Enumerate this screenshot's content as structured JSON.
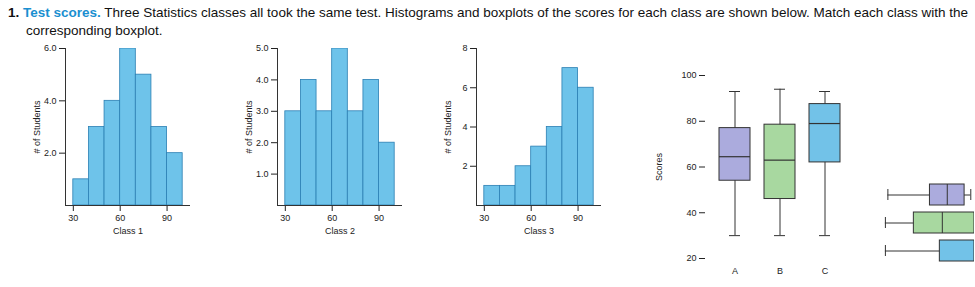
{
  "header": {
    "number": "1.",
    "title": "Test scores.",
    "text": "Three Statistics classes all took the same test. Histograms and boxplots of the scores for each class are shown below. Match each class with the corresponding boxplot."
  },
  "chart_data": [
    {
      "type": "histogram",
      "x_label": "Class 1",
      "y_label": "# of Students",
      "bins": [
        30,
        40,
        50,
        60,
        70,
        80,
        90,
        100
      ],
      "counts": [
        1,
        3,
        4,
        6,
        5,
        3,
        2
      ],
      "color": "#6ec3ea",
      "xlim": [
        25,
        105
      ],
      "xticks": [
        30,
        60,
        90
      ],
      "ylim": [
        0,
        6
      ],
      "yticks": [
        2,
        4,
        6
      ]
    },
    {
      "type": "histogram",
      "x_label": "Class 2",
      "y_label": "# of Students",
      "bins": [
        30,
        40,
        50,
        60,
        70,
        80,
        90,
        100
      ],
      "counts": [
        3,
        4,
        3,
        5,
        3,
        4,
        2
      ],
      "color": "#6ec3ea",
      "xlim": [
        25,
        105
      ],
      "xticks": [
        30,
        60,
        90
      ],
      "ylim": [
        0,
        5
      ],
      "yticks": [
        1,
        2,
        3,
        4,
        5
      ]
    },
    {
      "type": "histogram",
      "x_label": "Class 3",
      "y_label": "# of Students",
      "bins": [
        30,
        40,
        50,
        60,
        70,
        80,
        90,
        100
      ],
      "counts": [
        1,
        1,
        2,
        3,
        4,
        7,
        6
      ],
      "color": "#6ec3ea",
      "xlim": [
        25,
        105
      ],
      "xticks": [
        30,
        60,
        90
      ],
      "ylim": [
        0,
        8
      ],
      "yticks": [
        2,
        4,
        6,
        8
      ]
    },
    {
      "type": "boxplot",
      "y_label": "Scores",
      "categories": [
        "A",
        "B",
        "C"
      ],
      "boxes": [
        {
          "min": 30,
          "q1": 54,
          "median": 64.5,
          "q3": 77,
          "max": 93,
          "color": "#ababdd"
        },
        {
          "min": 30,
          "q1": 46,
          "median": 63,
          "q3": 78.5,
          "max": 94,
          "color": "#a8d8a0"
        },
        {
          "min": 30,
          "q1": 62,
          "median": 79,
          "q3": 87.5,
          "max": 93,
          "color": "#72c2e8"
        }
      ],
      "ylim": [
        20,
        100
      ],
      "yticks": [
        20,
        40,
        60,
        80,
        100
      ]
    },
    {
      "type": "boxplot",
      "orientation": "horizontal",
      "tick_labels": false,
      "boxes": [
        {
          "min": 30,
          "q1": 64,
          "median": 78,
          "q3": 92,
          "max": 97,
          "color": "#ababdd"
        },
        {
          "min": 28,
          "q1": 51,
          "median": 74,
          "q3": 100,
          "max": 100,
          "color": "#a8d8a0"
        },
        {
          "min": 28,
          "q1": 72,
          "median": 100,
          "q3": 100,
          "max": 100,
          "color": "#72c2e8"
        }
      ],
      "xlim": [
        20,
        100
      ]
    }
  ]
}
